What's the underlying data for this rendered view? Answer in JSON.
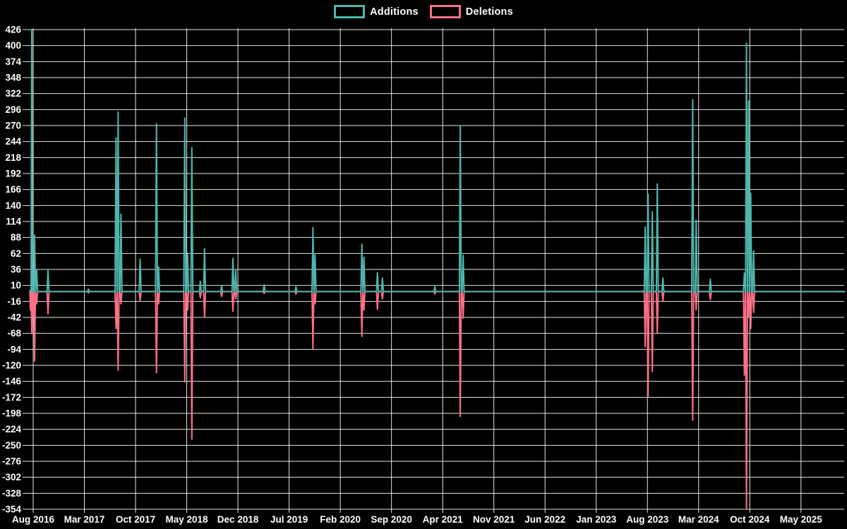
{
  "legend": {
    "items": [
      {
        "label": "Additions",
        "color": "#4db6ac"
      },
      {
        "label": "Deletions",
        "color": "#fa7086"
      }
    ]
  },
  "colors": {
    "background": "#000000",
    "grid": "#ffffff",
    "text": "#ffffff",
    "additions": "#4db6ac",
    "deletions": "#fa7086"
  },
  "chart_data": {
    "type": "line",
    "title": "",
    "description": "Weekly code additions and deletions over time; mostly zero baseline with sparse spikes",
    "x_axis": {
      "unit": "months since Aug 2016",
      "months_between_labels": 7,
      "labels": [
        "Aug 2016",
        "Mar 2017",
        "Oct 2017",
        "May 2018",
        "Dec 2018",
        "Jul 2019",
        "Feb 2020",
        "Sep 2020",
        "Apr 2021",
        "Nov 2021",
        "Jun 2022",
        "Jan 2023",
        "Aug 2023",
        "Mar 2024",
        "Oct 2024",
        "May 2025"
      ]
    },
    "y_axis": {
      "max": 426,
      "min": -354,
      "step": 26,
      "ticks": [
        426,
        400,
        374,
        348,
        322,
        296,
        270,
        244,
        218,
        192,
        166,
        140,
        114,
        88,
        62,
        36,
        10,
        -16,
        -42,
        -68,
        -94,
        -120,
        -146,
        -172,
        -198,
        -224,
        -250,
        -276,
        -302,
        -328,
        -354
      ]
    },
    "baseline": {
      "start_m": -0.5,
      "end_m": 111.0,
      "value": 0
    },
    "series": [
      {
        "name": "Additions",
        "events": [
          [
            -0.39,
            2
          ],
          [
            -0.19,
            426
          ],
          [
            0,
            10
          ],
          [
            0.19,
            92
          ],
          [
            0.48,
            36
          ],
          [
            2.03,
            36
          ],
          [
            7.56,
            4
          ],
          [
            11.33,
            250
          ],
          [
            11.62,
            292
          ],
          [
            12.01,
            126
          ],
          [
            14.63,
            53
          ],
          [
            16.86,
            273
          ],
          [
            17.15,
            40
          ],
          [
            20.73,
            282
          ],
          [
            21.12,
            60
          ],
          [
            21.7,
            234
          ],
          [
            22.86,
            17
          ],
          [
            23.44,
            70
          ],
          [
            25.77,
            9
          ],
          [
            27.32,
            54
          ],
          [
            27.7,
            34
          ],
          [
            31.58,
            11
          ],
          [
            35.94,
            8
          ],
          [
            38.26,
            104
          ],
          [
            38.55,
            60
          ],
          [
            44.95,
            77
          ],
          [
            45.24,
            56
          ],
          [
            47.08,
            31
          ],
          [
            47.76,
            22
          ],
          [
            54.93,
            8
          ],
          [
            58.41,
            269
          ],
          [
            58.8,
            59
          ],
          [
            83.7,
            105
          ],
          [
            84.09,
            158
          ],
          [
            84.67,
            130
          ],
          [
            85.35,
            175
          ],
          [
            86.12,
            22
          ],
          [
            90.19,
            312
          ],
          [
            90.67,
            116
          ],
          [
            92.61,
            20
          ],
          [
            97.26,
            30
          ],
          [
            97.55,
            404
          ],
          [
            97.84,
            310
          ],
          [
            98.13,
            160
          ],
          [
            98.52,
            66
          ]
        ]
      },
      {
        "name": "Deletions",
        "events": [
          [
            -0.39,
            -30
          ],
          [
            -0.19,
            -68
          ],
          [
            0,
            -40
          ],
          [
            0.19,
            -113
          ],
          [
            0.48,
            -20
          ],
          [
            2.03,
            -36
          ],
          [
            7.56,
            -2
          ],
          [
            11.33,
            -60
          ],
          [
            11.62,
            -128
          ],
          [
            12.01,
            -20
          ],
          [
            14.63,
            -15
          ],
          [
            16.86,
            -132
          ],
          [
            17.15,
            -20
          ],
          [
            20.73,
            -147
          ],
          [
            21.12,
            -30
          ],
          [
            21.7,
            -240
          ],
          [
            22.86,
            -10
          ],
          [
            23.44,
            -42
          ],
          [
            25.77,
            -8
          ],
          [
            27.32,
            -32
          ],
          [
            27.7,
            -12
          ],
          [
            31.58,
            -3
          ],
          [
            35.94,
            -4
          ],
          [
            38.26,
            -94
          ],
          [
            38.55,
            -20
          ],
          [
            44.95,
            -73
          ],
          [
            45.24,
            -30
          ],
          [
            47.08,
            -29
          ],
          [
            47.76,
            -12
          ],
          [
            54.93,
            -4
          ],
          [
            58.41,
            -203
          ],
          [
            58.8,
            -43
          ],
          [
            83.7,
            -90
          ],
          [
            84.09,
            -172
          ],
          [
            84.67,
            -130
          ],
          [
            85.35,
            -68
          ],
          [
            86.12,
            -15
          ],
          [
            90.19,
            -209
          ],
          [
            90.67,
            -30
          ],
          [
            92.61,
            -13
          ],
          [
            97.26,
            -136
          ],
          [
            97.55,
            -354
          ],
          [
            97.84,
            -40
          ],
          [
            98.13,
            -60
          ],
          [
            98.52,
            -34
          ]
        ]
      }
    ]
  }
}
